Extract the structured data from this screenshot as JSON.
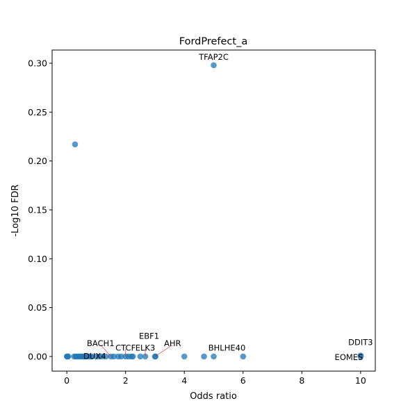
{
  "chart_data": {
    "type": "scatter",
    "title": "FordPrefect_a",
    "xlabel": "Odds ratio",
    "ylabel": "-Log10 FDR",
    "xlim": [
      -0.5,
      10.5
    ],
    "ylim": [
      -0.015,
      0.3135
    ],
    "xticks": [
      0,
      2,
      4,
      6,
      8,
      10
    ],
    "yticks": [
      0.0,
      0.05,
      0.1,
      0.15,
      0.2,
      0.25,
      0.3
    ],
    "ytick_labels": [
      "0.00",
      "0.05",
      "0.10",
      "0.15",
      "0.20",
      "0.25",
      "0.30"
    ],
    "grid": false,
    "marker_color": "#1f77b4",
    "points": [
      {
        "x": 0.0,
        "y": 0.0
      },
      {
        "x": 0.02,
        "y": 0.0
      },
      {
        "x": 0.05,
        "y": 0.0
      },
      {
        "x": 0.25,
        "y": 0.0
      },
      {
        "x": 0.3,
        "y": 0.0
      },
      {
        "x": 0.35,
        "y": 0.0
      },
      {
        "x": 0.4,
        "y": 0.0
      },
      {
        "x": 0.45,
        "y": 0.0
      },
      {
        "x": 0.5,
        "y": 0.0
      },
      {
        "x": 0.55,
        "y": 0.0
      },
      {
        "x": 0.6,
        "y": 0.0
      },
      {
        "x": 0.67,
        "y": 0.0
      },
      {
        "x": 0.75,
        "y": 0.0
      },
      {
        "x": 0.8,
        "y": 0.0
      },
      {
        "x": 0.85,
        "y": 0.0
      },
      {
        "x": 1.0,
        "y": 0.0
      },
      {
        "x": 1.1,
        "y": 0.0
      },
      {
        "x": 1.2,
        "y": 0.0
      },
      {
        "x": 1.33,
        "y": 0.0
      },
      {
        "x": 1.5,
        "y": 0.0
      },
      {
        "x": 1.6,
        "y": 0.0
      },
      {
        "x": 1.75,
        "y": 0.0
      },
      {
        "x": 1.85,
        "y": 0.0
      },
      {
        "x": 2.0,
        "y": 0.0
      },
      {
        "x": 2.1,
        "y": 0.0
      },
      {
        "x": 2.2,
        "y": 0.0
      },
      {
        "x": 2.25,
        "y": 0.0
      },
      {
        "x": 2.5,
        "y": 0.0
      },
      {
        "x": 2.67,
        "y": 0.0
      },
      {
        "x": 3.0,
        "y": 0.0
      },
      {
        "x": 3.02,
        "y": 0.0
      },
      {
        "x": 4.0,
        "y": 0.0
      },
      {
        "x": 4.67,
        "y": 0.0
      },
      {
        "x": 5.0,
        "y": 0.0
      },
      {
        "x": 6.0,
        "y": 0.0
      },
      {
        "x": 10.0,
        "y": 0.0
      },
      {
        "x": 10.0,
        "y": 0.001
      },
      {
        "x": 0.28,
        "y": 0.217
      },
      {
        "x": 5.0,
        "y": 0.298
      }
    ],
    "annotations": [
      {
        "text": "TFAP2C",
        "x": 5.0,
        "y": 0.298,
        "tx": 5.0,
        "ty": 0.3035,
        "anchor": "middle",
        "connector": false
      },
      {
        "text": "BACH1",
        "x": 1.5,
        "y": 0.0,
        "tx": 1.15,
        "ty": 0.0105,
        "anchor": "middle",
        "connector": true
      },
      {
        "text": "DUX4",
        "x": 0.6,
        "y": 0.0,
        "tx": 0.95,
        "ty": -0.0025,
        "anchor": "middle",
        "connector": false
      },
      {
        "text": "CTCF",
        "x": 2.0,
        "y": 0.0,
        "tx": 2.0,
        "ty": 0.006,
        "anchor": "middle",
        "connector": true
      },
      {
        "text": "ELK3",
        "x": 2.67,
        "y": 0.0,
        "tx": 2.67,
        "ty": 0.006,
        "anchor": "middle",
        "connector": true
      },
      {
        "text": "EBF1",
        "x": 2.67,
        "y": 0.0,
        "tx": 2.8,
        "ty": 0.018,
        "anchor": "middle",
        "connector": false
      },
      {
        "text": "AHR",
        "x": 3.0,
        "y": 0.0,
        "tx": 3.6,
        "ty": 0.0105,
        "anchor": "middle",
        "connector": true
      },
      {
        "text": "BHLHE40",
        "x": 5.0,
        "y": 0.0,
        "tx": 5.45,
        "ty": 0.006,
        "anchor": "middle",
        "connector": false
      },
      {
        "text": "DDIT3",
        "x": 10.0,
        "y": 0.0,
        "tx": 10.0,
        "ty": 0.0115,
        "anchor": "middle",
        "connector": false
      },
      {
        "text": "EOMES",
        "x": 10.0,
        "y": 0.0,
        "tx": 9.6,
        "ty": -0.0035,
        "anchor": "middle",
        "connector": false
      }
    ]
  }
}
